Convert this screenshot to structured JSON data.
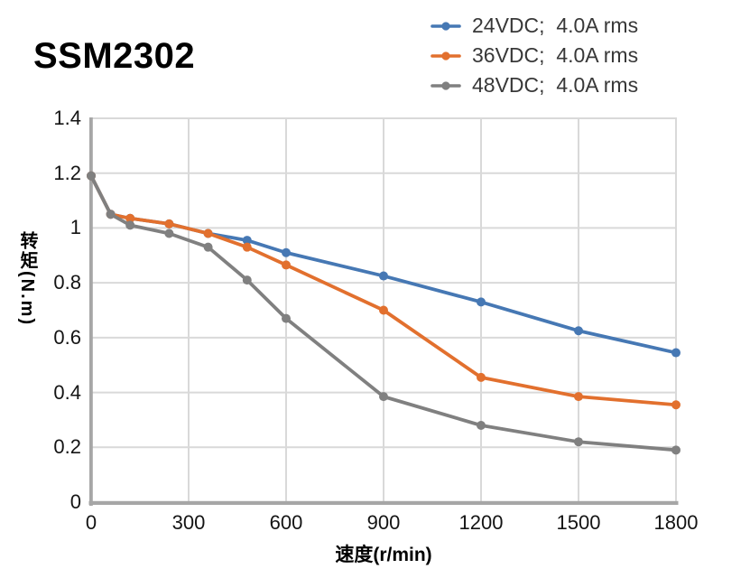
{
  "chart_data": {
    "type": "line",
    "title": "SSM2302",
    "xlabel": "速度(r/min)",
    "ylabel": "转矩(N.m)",
    "xlim": [
      0,
      1800
    ],
    "ylim": [
      0,
      1.4
    ],
    "x_ticks": [
      0,
      300,
      600,
      900,
      1200,
      1500,
      1800
    ],
    "y_ticks": [
      0,
      0.2,
      0.4,
      0.6,
      0.8,
      1,
      1.2,
      1.4
    ],
    "grid": true,
    "legend_position": "top-right",
    "x": [
      0,
      60,
      120,
      240,
      360,
      480,
      600,
      900,
      1200,
      1500,
      1800
    ],
    "series": [
      {
        "name": "24VDC;  4.0A rms",
        "color": "#4678B4",
        "values": [
          1.19,
          1.05,
          1.035,
          1.015,
          0.98,
          0.955,
          0.91,
          0.825,
          0.73,
          0.625,
          0.545
        ]
      },
      {
        "name": "36VDC;  4.0A rms",
        "color": "#E2702E",
        "values": [
          1.19,
          1.05,
          1.035,
          1.015,
          0.98,
          0.93,
          0.865,
          0.7,
          0.455,
          0.385,
          0.355
        ]
      },
      {
        "name": "48VDC;  4.0A rms",
        "color": "#808080",
        "values": [
          1.19,
          1.05,
          1.01,
          0.98,
          0.93,
          0.81,
          0.67,
          0.385,
          0.28,
          0.22,
          0.19
        ]
      }
    ],
    "colors": {
      "gridline": "#D9D9D9",
      "axis": "#A6A6A6",
      "tick_text": "#141414",
      "legend_text": "#383838",
      "title_text": "#000000"
    }
  }
}
